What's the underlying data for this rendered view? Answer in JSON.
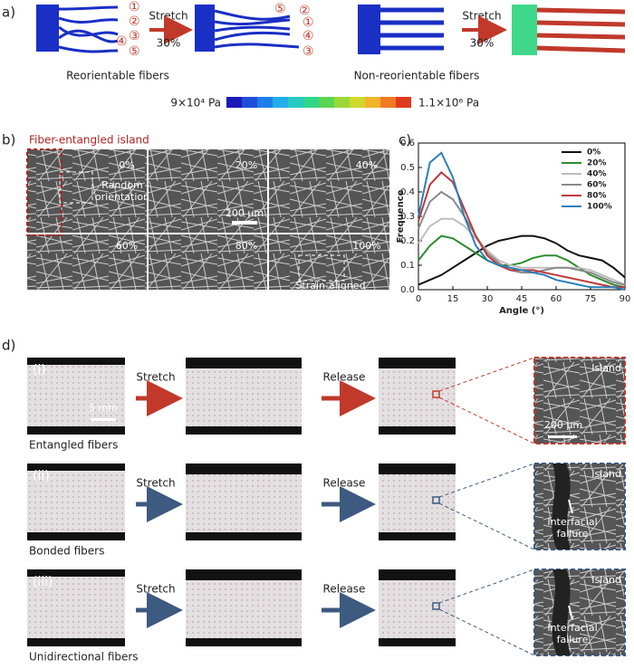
{
  "panel_labels": [
    "a)",
    "b)",
    "c)",
    "d)"
  ],
  "panel_a": {
    "left_labels": [
      "①",
      "②",
      "③",
      "④",
      "⑤"
    ],
    "stretched_labels": [
      "⑤",
      "②",
      "①",
      "④",
      "③"
    ],
    "stretch": "Stretch",
    "strain": "30%",
    "reorientable": "Reorientable fibers",
    "non_reorientable": "Non-reorientable fibers",
    "colorbar_min": "9×10⁴ Pa",
    "colorbar_max": "1.1×10⁶ Pa"
  },
  "panel_b": {
    "island": "Fiber-entangled island",
    "strains": [
      "0%",
      "20%",
      "40%",
      "60%",
      "80%",
      "100%"
    ],
    "random": "Random orientation",
    "scale": "200 μm",
    "aligned": "Strain-aligned orientation"
  },
  "chart_data": {
    "type": "line",
    "xlabel": "Angle (°)",
    "ylabel": "Frequence",
    "x": [
      0,
      5,
      10,
      15,
      20,
      25,
      30,
      35,
      40,
      45,
      50,
      55,
      60,
      65,
      70,
      75,
      80,
      85,
      90
    ],
    "series": [
      {
        "name": "0%",
        "color": "#111111",
        "values": [
          0.02,
          0.04,
          0.06,
          0.09,
          0.12,
          0.15,
          0.18,
          0.2,
          0.21,
          0.22,
          0.22,
          0.21,
          0.19,
          0.16,
          0.14,
          0.13,
          0.12,
          0.09,
          0.05
        ]
      },
      {
        "name": "20%",
        "color": "#2e8b2e",
        "values": [
          0.12,
          0.18,
          0.22,
          0.21,
          0.18,
          0.15,
          0.12,
          0.1,
          0.1,
          0.11,
          0.13,
          0.14,
          0.14,
          0.12,
          0.09,
          0.06,
          0.04,
          0.02,
          0.01
        ]
      },
      {
        "name": "40%",
        "color": "#bdbdbd",
        "values": [
          0.19,
          0.26,
          0.29,
          0.29,
          0.26,
          0.21,
          0.16,
          0.12,
          0.1,
          0.09,
          0.09,
          0.09,
          0.09,
          0.09,
          0.09,
          0.08,
          0.06,
          0.04,
          0.02
        ]
      },
      {
        "name": "60%",
        "color": "#8a8a8a",
        "values": [
          0.25,
          0.36,
          0.4,
          0.37,
          0.3,
          0.22,
          0.15,
          0.11,
          0.08,
          0.07,
          0.07,
          0.08,
          0.09,
          0.09,
          0.08,
          0.07,
          0.05,
          0.03,
          0.02
        ]
      },
      {
        "name": "80%",
        "color": "#c0393b",
        "values": [
          0.28,
          0.43,
          0.48,
          0.44,
          0.33,
          0.22,
          0.14,
          0.1,
          0.08,
          0.08,
          0.08,
          0.07,
          0.06,
          0.05,
          0.04,
          0.03,
          0.02,
          0.01,
          0.01
        ]
      },
      {
        "name": "100%",
        "color": "#2a7fba",
        "values": [
          0.3,
          0.52,
          0.56,
          0.46,
          0.3,
          0.18,
          0.12,
          0.1,
          0.09,
          0.08,
          0.07,
          0.06,
          0.04,
          0.03,
          0.02,
          0.01,
          0.01,
          0.01,
          0
        ]
      }
    ],
    "xlim": [
      0,
      90
    ],
    "xticks": [
      0,
      15,
      30,
      45,
      60,
      75,
      90
    ],
    "ylim": [
      0,
      0.6
    ],
    "yticks": [
      {
        "value": 0,
        "label": "0.0"
      },
      0.1,
      0.2,
      0.3,
      0.4,
      0.5,
      0.6
    ],
    "legend": "upper right"
  },
  "panel_d": {
    "rows": [
      {
        "tag": "(i)",
        "label": "Entangled fibers"
      },
      {
        "tag": "(ii)",
        "label": "Bonded fibers"
      },
      {
        "tag": "(iii)",
        "label": "Unidirectional fibers"
      }
    ],
    "stretch": "Stretch",
    "release": "Release",
    "scale_photo": "5 mm",
    "island": "Island",
    "scale_sem": "200 μm",
    "failure": "Interfacial failure"
  }
}
